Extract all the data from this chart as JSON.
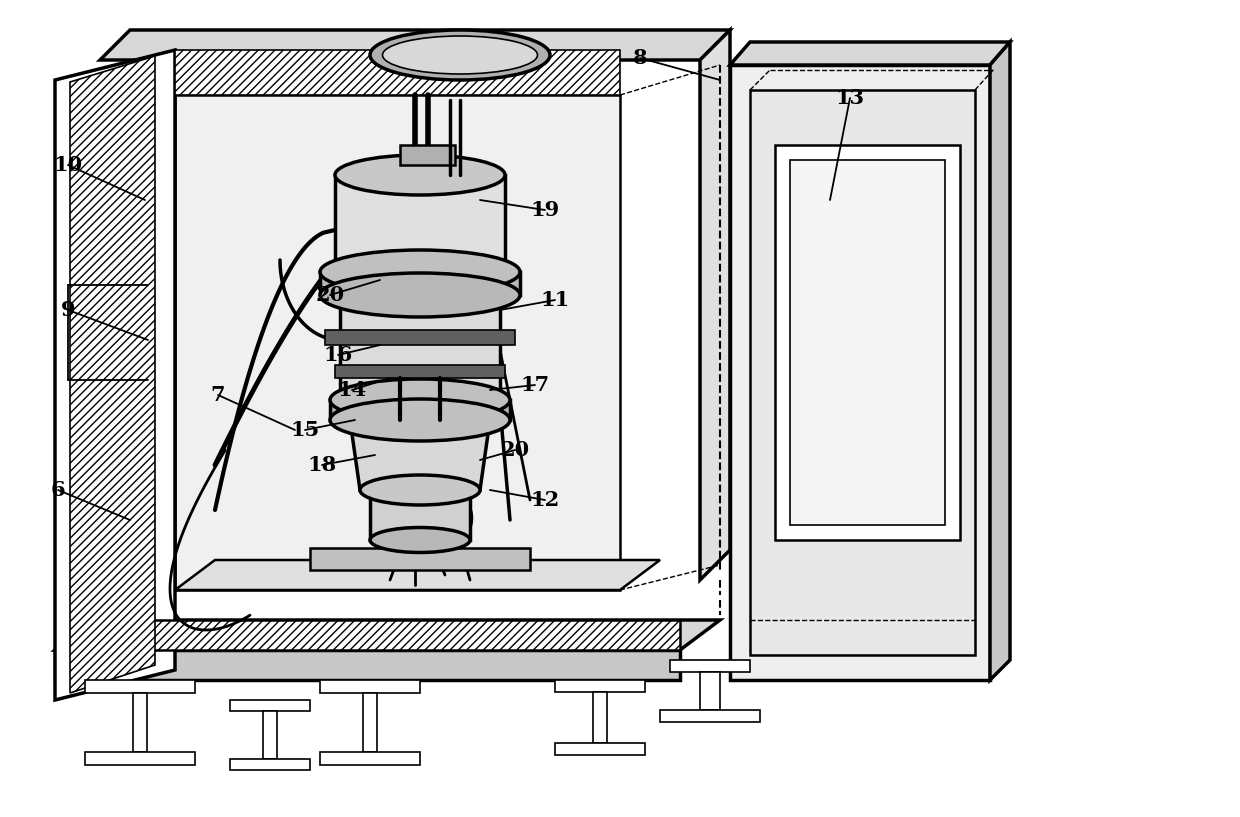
{
  "background_color": "#ffffff",
  "line_color": "#000000",
  "label_fontsize": 15,
  "label_fontweight": "bold"
}
